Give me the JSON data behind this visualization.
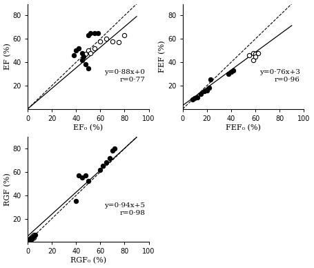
{
  "subplot1": {
    "xlabel": "EF₀ (%)",
    "ylabel": "EF (%)",
    "xlim": [
      0,
      100
    ],
    "ylim": [
      0,
      90
    ],
    "xticks": [
      0,
      20,
      40,
      60,
      80,
      100
    ],
    "yticks": [
      20,
      40,
      60,
      80
    ],
    "equation": "y=0·88x+0",
    "r_value": "r=0·77",
    "slope": 0.88,
    "intercept": 0,
    "open_circles": [
      [
        48,
        47
      ],
      [
        50,
        50
      ],
      [
        52,
        48
      ],
      [
        55,
        52
      ],
      [
        60,
        58
      ],
      [
        65,
        60
      ],
      [
        70,
        58
      ],
      [
        75,
        57
      ],
      [
        80,
        63
      ]
    ],
    "filled_circles": [
      [
        38,
        46
      ],
      [
        40,
        50
      ],
      [
        42,
        52
      ],
      [
        45,
        48
      ],
      [
        45,
        42
      ],
      [
        46,
        45
      ],
      [
        48,
        38
      ],
      [
        50,
        35
      ],
      [
        50,
        63
      ],
      [
        52,
        65
      ],
      [
        55,
        65
      ],
      [
        58,
        65
      ]
    ]
  },
  "subplot2": {
    "xlabel": "FEF₀ (%)",
    "ylabel": "FEF (%)",
    "xlim": [
      0,
      100
    ],
    "ylim": [
      0,
      90
    ],
    "xticks": [
      0,
      20,
      40,
      60,
      80,
      100
    ],
    "yticks": [
      20,
      40,
      60,
      80
    ],
    "equation": "y=0·76x+3",
    "r_value": "r=0·96",
    "slope": 0.76,
    "intercept": 3,
    "open_circles": [
      [
        55,
        46
      ],
      [
        58,
        48
      ],
      [
        60,
        47
      ],
      [
        62,
        48
      ],
      [
        58,
        42
      ],
      [
        60,
        45
      ]
    ],
    "filled_circles": [
      [
        8,
        8
      ],
      [
        10,
        9
      ],
      [
        12,
        10
      ],
      [
        15,
        13
      ],
      [
        18,
        15
      ],
      [
        20,
        16
      ],
      [
        22,
        18
      ],
      [
        23,
        25
      ],
      [
        38,
        30
      ],
      [
        40,
        32
      ],
      [
        42,
        33
      ]
    ]
  },
  "subplot3": {
    "xlabel": "RGF₀ (%)",
    "ylabel": "RGF (%)",
    "xlim": [
      0,
      100
    ],
    "ylim": [
      0,
      90
    ],
    "xticks": [
      0,
      20,
      40,
      60,
      80,
      100
    ],
    "yticks": [
      20,
      40,
      60,
      80
    ],
    "equation": "y=0·94x+5",
    "r_value": "r=0·98",
    "slope": 0.94,
    "intercept": 5,
    "open_circles": [
      [
        2,
        3
      ],
      [
        3,
        4
      ],
      [
        4,
        5
      ],
      [
        5,
        6
      ],
      [
        3,
        2
      ],
      [
        4,
        3
      ],
      [
        5,
        4
      ]
    ],
    "filled_circles": [
      [
        2,
        2
      ],
      [
        3,
        3
      ],
      [
        4,
        4
      ],
      [
        5,
        5
      ],
      [
        6,
        6
      ],
      [
        40,
        35
      ],
      [
        42,
        57
      ],
      [
        45,
        55
      ],
      [
        48,
        57
      ],
      [
        50,
        52
      ],
      [
        60,
        62
      ],
      [
        62,
        65
      ],
      [
        65,
        68
      ],
      [
        68,
        72
      ],
      [
        70,
        78
      ],
      [
        72,
        80
      ]
    ]
  },
  "bg_color": "white",
  "text_fontsize": 7.5,
  "label_fontsize": 8,
  "tick_fontsize": 7,
  "marker_size": 4.5
}
